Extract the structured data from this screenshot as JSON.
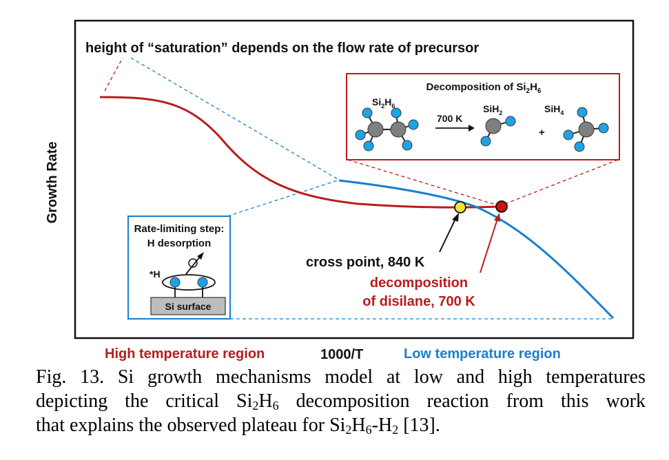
{
  "title": "height of “saturation” depends on the flow rate of precursor",
  "y_axis_label": "Growth Rate",
  "x_axis_label": "1000/T",
  "region_labels": {
    "high": "High temperature region",
    "low": "Low temperature region"
  },
  "decomposition_box": {
    "title_main": "Decomposition of Si",
    "title_sub1": "2",
    "title_mid": "H",
    "title_sub2": "6",
    "reactant_main": "Si",
    "reactant_sub1": "2",
    "reactant_mid": "H",
    "reactant_sub2": "6",
    "condition": "700 K",
    "product1_main": "SiH",
    "product1_sub": "2",
    "plus": "+",
    "product2_main": "SiH",
    "product2_sub": "4"
  },
  "rate_box": {
    "line1": "Rate-limiting step:",
    "line2": "H desorption",
    "h_label": "*H",
    "surface_label": "Si surface"
  },
  "annotations": {
    "cross_point": "cross point, 840 K",
    "decomposition_line1": "decomposition",
    "decomposition_line2": "of disilane, 700 K"
  },
  "colors": {
    "red": "#b81c1c",
    "blue": "#1a7fcc",
    "atom_gray": "#7f7f7f",
    "atom_blue": "#1fa3e6",
    "cross_point_marker": "#f2e23a",
    "decomp_marker": "#cc1111"
  },
  "caption": {
    "line1": "Fig. 13. Si growth mechanisms model at low and high temperatures",
    "line2_a": "depicting the critical Si",
    "line2_s1": "2",
    "line2_b": "H",
    "line2_s2": "6",
    "line2_c": " decomposition reaction from this work",
    "line3_a": "that explains the observed plateau for Si",
    "line3_s1": "2",
    "line3_b": "H",
    "line3_s2": "6",
    "line3_c": "-H",
    "line3_s3": "2",
    "line3_d": " [13]."
  }
}
